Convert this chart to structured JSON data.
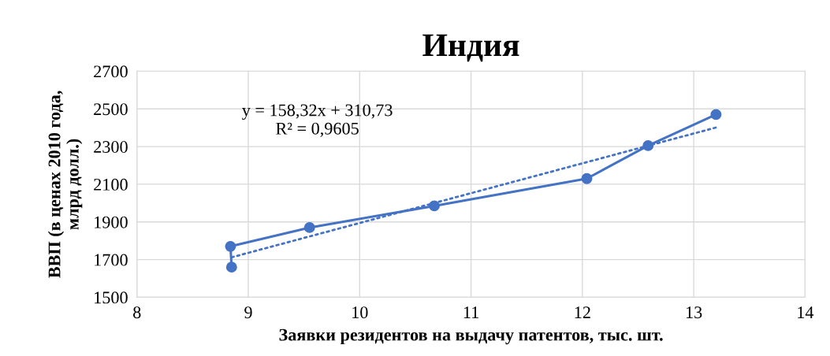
{
  "chart_data": {
    "type": "line",
    "title": "Индия",
    "xlabel": "Заявки резидентов на выдачу патентов, тыс. шт.",
    "ylabel": "ВВП (в ценах 2010 года,\nмлрд долл.)",
    "x": [
      8.85,
      8.84,
      9.55,
      10.67,
      12.04,
      12.59,
      13.2
    ],
    "series": [
      {
        "color": "#4472c4",
        "values": [
          1660,
          1770,
          1870,
          1985,
          2130,
          2305,
          2470
        ],
        "marker": "circle",
        "line_style": "solid"
      },
      {
        "type": "line",
        "x": [
          8.85,
          13.2
        ],
        "values": [
          1712,
          2401
        ],
        "color": "#4472c4",
        "marker": "none",
        "line_style": "dotted"
      }
    ],
    "annotations": [
      "y = 158,32x + 310,73\nR² = 0,9605"
    ],
    "xlim": [
      8,
      14
    ],
    "xticks": [
      8,
      9,
      10,
      11,
      12,
      13,
      14
    ],
    "ylim": [
      1500,
      2700
    ],
    "yticks": [
      1500,
      1700,
      1900,
      2100,
      2300,
      2500,
      2700
    ],
    "grid": true,
    "legend": false
  }
}
